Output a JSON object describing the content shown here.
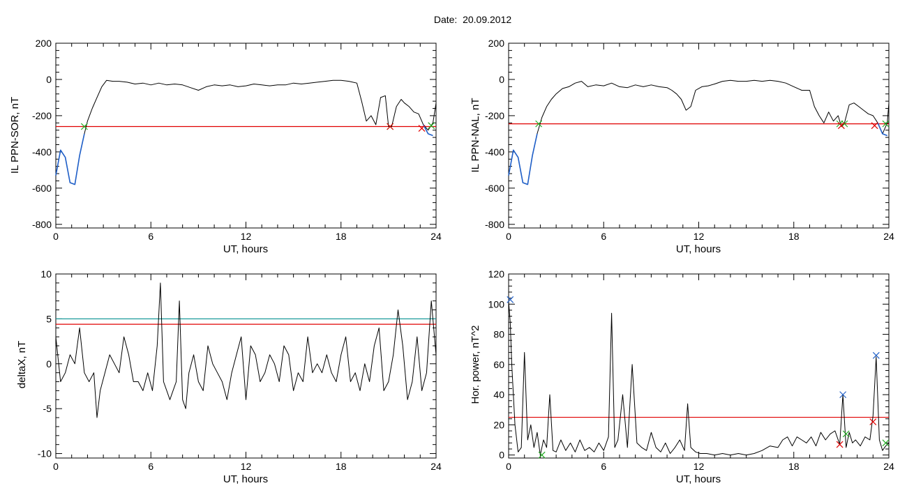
{
  "figure": {
    "title": "Date:  20.09.2012"
  },
  "colors": {
    "trace": "#000000",
    "blue_segment": "#1f5fc8",
    "threshold_red": "#e00000",
    "threshold_teal": "#1a9a9a",
    "marker_green": "#22aa22",
    "marker_red": "#e00000",
    "marker_blue": "#1f5fc8"
  },
  "chart_data": [
    {
      "type": "line",
      "title": "",
      "xlabel": "UT, hours",
      "ylabel": "IL PPN-SOR, nT",
      "xlim": [
        0,
        24
      ],
      "ylim": [
        -820,
        200
      ],
      "xticks": [
        0,
        6,
        12,
        18,
        24
      ],
      "yticks": [
        200,
        0,
        -200,
        -400,
        -600,
        -800
      ],
      "series": [
        {
          "color": "#000000",
          "x": [
            0,
            0.3,
            0.6,
            0.9,
            1.2,
            1.5,
            1.8,
            2.0,
            2.3,
            2.6,
            2.9,
            3.2,
            3.6,
            4.0,
            4.5,
            5.0,
            5.5,
            6.0,
            6.5,
            7.0,
            7.5,
            8.0,
            8.5,
            9.0,
            9.5,
            10.0,
            10.5,
            11.0,
            11.5,
            12.0,
            12.5,
            13.0,
            13.5,
            14.0,
            14.5,
            15.0,
            15.5,
            16.0,
            16.5,
            17.0,
            17.5,
            18.0,
            18.5,
            19.0,
            19.3,
            19.6,
            19.9,
            20.2,
            20.5,
            20.8,
            21.0,
            21.2,
            21.5,
            21.8,
            22.0,
            22.3,
            22.6,
            22.9,
            23.2,
            23.5,
            23.8,
            24.0
          ],
          "y": [
            -530,
            -390,
            -430,
            -570,
            -580,
            -420,
            -300,
            -230,
            -160,
            -100,
            -40,
            -5,
            -10,
            -10,
            -15,
            -25,
            -20,
            -30,
            -20,
            -30,
            -25,
            -30,
            -45,
            -60,
            -40,
            -30,
            -35,
            -30,
            -40,
            -35,
            -25,
            -30,
            -35,
            -30,
            -30,
            -20,
            -25,
            -20,
            -15,
            -10,
            -5,
            -5,
            -10,
            -20,
            -120,
            -230,
            -200,
            -250,
            -100,
            -90,
            -260,
            -260,
            -150,
            -110,
            -130,
            -150,
            -180,
            -190,
            -250,
            -280,
            -240,
            -130
          ]
        },
        {
          "color": "#1f5fc8",
          "x": [
            0,
            0.3,
            0.6,
            0.9,
            1.2,
            1.5,
            1.8
          ],
          "y": [
            -530,
            -390,
            -430,
            -570,
            -580,
            -420,
            -300
          ]
        },
        {
          "color": "#1f5fc8",
          "x": [
            23.2,
            23.5,
            23.8
          ],
          "y": [
            -250,
            -300,
            -310
          ]
        }
      ],
      "hlines": [
        {
          "y": -260,
          "color": "#e00000"
        }
      ],
      "markers": [
        {
          "x": 1.8,
          "y": -260,
          "color": "#22aa22"
        },
        {
          "x": 21.1,
          "y": -260,
          "color": "#22aa22"
        },
        {
          "x": 21.1,
          "y": -260,
          "color": "#e00000"
        },
        {
          "x": 23.1,
          "y": -270,
          "color": "#e00000"
        },
        {
          "x": 23.7,
          "y": -255,
          "color": "#22aa22"
        }
      ]
    },
    {
      "type": "line",
      "title": "",
      "xlabel": "UT, hours",
      "ylabel": "IL PPN-NAL, nT",
      "xlim": [
        0,
        24
      ],
      "ylim": [
        -820,
        200
      ],
      "xticks": [
        0,
        6,
        12,
        18,
        24
      ],
      "yticks": [
        200,
        0,
        -200,
        -400,
        -600,
        -800
      ],
      "series": [
        {
          "color": "#000000",
          "x": [
            0,
            0.3,
            0.6,
            0.9,
            1.2,
            1.5,
            1.8,
            2.1,
            2.4,
            2.7,
            3.0,
            3.4,
            3.8,
            4.2,
            4.6,
            5.0,
            5.5,
            6.0,
            6.5,
            7.0,
            7.5,
            8.0,
            8.5,
            9.0,
            9.5,
            10.0,
            10.3,
            10.6,
            10.9,
            11.2,
            11.5,
            11.8,
            12.2,
            12.6,
            13.0,
            13.5,
            14.0,
            14.5,
            15.0,
            15.5,
            16.0,
            16.5,
            17.0,
            17.5,
            18.0,
            18.5,
            19.0,
            19.3,
            19.6,
            19.9,
            20.2,
            20.5,
            20.8,
            21.0,
            21.2,
            21.5,
            21.8,
            22.1,
            22.4,
            22.7,
            23.0,
            23.3,
            23.6,
            23.9,
            24.0
          ],
          "y": [
            -530,
            -390,
            -430,
            -570,
            -580,
            -420,
            -300,
            -210,
            -150,
            -110,
            -80,
            -50,
            -40,
            -20,
            -10,
            -40,
            -30,
            -35,
            -20,
            -40,
            -45,
            -30,
            -40,
            -30,
            -40,
            -45,
            -60,
            -80,
            -110,
            -170,
            -150,
            -60,
            -40,
            -35,
            -25,
            -10,
            -5,
            -10,
            -10,
            -5,
            -10,
            -5,
            -10,
            -20,
            -40,
            -60,
            -60,
            -150,
            -200,
            -240,
            -180,
            -230,
            -200,
            -260,
            -240,
            -140,
            -130,
            -150,
            -170,
            -190,
            -200,
            -240,
            -300,
            -240,
            -130
          ]
        },
        {
          "color": "#1f5fc8",
          "x": [
            0,
            0.3,
            0.6,
            0.9,
            1.2,
            1.5,
            1.8
          ],
          "y": [
            -530,
            -390,
            -430,
            -570,
            -580,
            -420,
            -300
          ]
        },
        {
          "color": "#1f5fc8",
          "x": [
            23.3,
            23.6,
            23.9
          ],
          "y": [
            -240,
            -300,
            -310
          ]
        }
      ],
      "hlines": [
        {
          "y": -245,
          "color": "#e00000"
        }
      ],
      "markers": [
        {
          "x": 1.9,
          "y": -245,
          "color": "#22aa22"
        },
        {
          "x": 20.9,
          "y": -245,
          "color": "#22aa22"
        },
        {
          "x": 21.2,
          "y": -245,
          "color": "#22aa22"
        },
        {
          "x": 21.0,
          "y": -255,
          "color": "#e00000"
        },
        {
          "x": 23.1,
          "y": -255,
          "color": "#e00000"
        },
        {
          "x": 23.8,
          "y": -245,
          "color": "#22aa22"
        }
      ]
    },
    {
      "type": "line",
      "title": "",
      "xlabel": "UT, hours",
      "ylabel": "deltaX, nT",
      "xlim": [
        0,
        24
      ],
      "ylim": [
        -10.5,
        10
      ],
      "xticks": [
        0,
        6,
        12,
        18,
        24
      ],
      "yticks": [
        10,
        5,
        0,
        -5,
        -10
      ],
      "series": [
        {
          "color": "#000000",
          "x": [
            0,
            0.3,
            0.6,
            0.9,
            1.2,
            1.5,
            1.8,
            2.1,
            2.4,
            2.6,
            2.8,
            3.1,
            3.4,
            3.7,
            4.0,
            4.3,
            4.6,
            4.9,
            5.2,
            5.5,
            5.8,
            6.1,
            6.4,
            6.6,
            6.8,
            7.0,
            7.2,
            7.4,
            7.6,
            7.8,
            8.0,
            8.2,
            8.4,
            8.7,
            9.0,
            9.3,
            9.6,
            9.9,
            10.2,
            10.5,
            10.8,
            11.1,
            11.4,
            11.7,
            12.0,
            12.3,
            12.6,
            12.9,
            13.2,
            13.5,
            13.8,
            14.1,
            14.4,
            14.7,
            15.0,
            15.3,
            15.6,
            15.9,
            16.2,
            16.5,
            16.8,
            17.1,
            17.4,
            17.7,
            18.0,
            18.3,
            18.6,
            18.9,
            19.2,
            19.5,
            19.8,
            20.1,
            20.4,
            20.7,
            21.0,
            21.3,
            21.6,
            21.9,
            22.2,
            22.5,
            22.8,
            23.1,
            23.4,
            23.7,
            24.0
          ],
          "y": [
            3,
            -2,
            -1,
            1,
            0,
            4,
            -1,
            -2,
            -1,
            -6,
            -3,
            -1,
            1,
            0,
            -1,
            3,
            1,
            -2,
            -2,
            -3,
            -1,
            -3,
            2,
            9,
            -2,
            -3,
            -4,
            -3,
            -2,
            7,
            -4,
            -5,
            -1,
            1,
            -2,
            -3,
            2,
            0,
            -1,
            -2,
            -4,
            -1,
            1,
            3,
            -4,
            2,
            1,
            -2,
            -1,
            1,
            0,
            -2,
            2,
            1,
            -3,
            -1,
            -2,
            3,
            -1,
            0,
            -1,
            1,
            -1,
            -2,
            1,
            3,
            -2,
            -1,
            -3,
            0,
            -2,
            2,
            4,
            -3,
            -2,
            1,
            6,
            2,
            -4,
            -2,
            3,
            -3,
            -1,
            7,
            1
          ]
        }
      ],
      "hlines": [
        {
          "y": 5,
          "color": "#1a9a9a"
        },
        {
          "y": 4.4,
          "color": "#e00000"
        }
      ],
      "markers": []
    },
    {
      "type": "line",
      "title": "",
      "xlabel": "UT, hours",
      "ylabel": "Hor. power, nT^2",
      "xlim": [
        0,
        24
      ],
      "ylim": [
        -2,
        120
      ],
      "xticks": [
        0,
        6,
        12,
        18,
        24
      ],
      "yticks": [
        120,
        100,
        80,
        60,
        40,
        20,
        0
      ],
      "series": [
        {
          "color": "#000000",
          "x": [
            0,
            0.1,
            0.2,
            0.4,
            0.6,
            0.8,
            1.0,
            1.2,
            1.4,
            1.6,
            1.8,
            2.0,
            2.2,
            2.4,
            2.6,
            2.8,
            3.0,
            3.3,
            3.6,
            3.9,
            4.2,
            4.5,
            4.8,
            5.1,
            5.4,
            5.7,
            6.0,
            6.3,
            6.5,
            6.7,
            6.9,
            7.2,
            7.5,
            7.8,
            8.1,
            8.4,
            8.7,
            9.0,
            9.3,
            9.6,
            9.9,
            10.2,
            10.5,
            10.8,
            11.1,
            11.3,
            11.5,
            11.8,
            12.1,
            12.5,
            13.0,
            13.5,
            14.0,
            14.5,
            15.0,
            15.5,
            16.0,
            16.5,
            17.0,
            17.3,
            17.6,
            17.9,
            18.2,
            18.5,
            18.8,
            19.1,
            19.4,
            19.7,
            20.0,
            20.3,
            20.6,
            20.9,
            21.1,
            21.3,
            21.5,
            21.7,
            21.9,
            22.2,
            22.5,
            22.8,
            23.0,
            23.2,
            23.4,
            23.6,
            23.8,
            24.0
          ],
          "y": [
            102,
            88,
            60,
            20,
            2,
            5,
            68,
            10,
            20,
            5,
            15,
            0,
            10,
            5,
            40,
            3,
            2,
            10,
            3,
            8,
            2,
            10,
            3,
            5,
            2,
            8,
            3,
            12,
            94,
            5,
            10,
            40,
            5,
            60,
            8,
            5,
            3,
            15,
            5,
            2,
            8,
            1,
            5,
            10,
            3,
            34,
            5,
            2,
            1,
            1,
            0,
            1,
            0,
            1,
            0,
            1,
            3,
            6,
            5,
            10,
            12,
            6,
            12,
            10,
            8,
            12,
            6,
            15,
            10,
            14,
            16,
            7,
            40,
            5,
            15,
            8,
            10,
            6,
            12,
            10,
            26,
            65,
            10,
            3,
            6,
            8
          ]
        }
      ],
      "hlines": [
        {
          "y": 25,
          "color": "#e00000"
        }
      ],
      "markers": [
        {
          "x": 0.1,
          "y": 103,
          "color": "#1f5fc8"
        },
        {
          "x": 2.1,
          "y": 0,
          "color": "#22aa22"
        },
        {
          "x": 20.9,
          "y": 7,
          "color": "#e00000"
        },
        {
          "x": 21.1,
          "y": 40,
          "color": "#1f5fc8"
        },
        {
          "x": 21.3,
          "y": 14,
          "color": "#22aa22"
        },
        {
          "x": 23.0,
          "y": 22,
          "color": "#e00000"
        },
        {
          "x": 23.2,
          "y": 66,
          "color": "#1f5fc8"
        },
        {
          "x": 23.8,
          "y": 8,
          "color": "#22aa22"
        }
      ]
    }
  ]
}
